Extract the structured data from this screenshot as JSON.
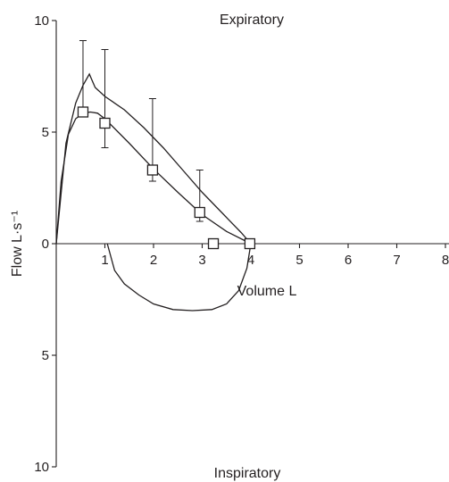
{
  "chart_data": {
    "type": "line",
    "xlabel": "Volume L",
    "ylabel": "Flow L·s⁻¹",
    "xlim": [
      0,
      8
    ],
    "ylim": [
      -10,
      10
    ],
    "x_ticks": [
      1,
      2,
      3,
      4,
      5,
      6,
      7,
      8
    ],
    "y_ticks": [
      {
        "value": 10,
        "label": "10"
      },
      {
        "value": 5,
        "label": "5"
      },
      {
        "value": 0,
        "label": "0"
      },
      {
        "value": -5,
        "label": "5"
      },
      {
        "value": -10,
        "label": "10"
      }
    ],
    "annotations": {
      "top": "Expiratory",
      "bottom": "Inspiratory"
    },
    "series": [
      {
        "x": [
          0,
          0.2,
          0.4,
          0.55,
          0.68,
          0.8,
          1.0,
          1.4,
          1.8,
          2.2,
          2.6,
          3.0,
          3.4,
          3.8,
          4.0
        ],
        "y": [
          0,
          4.5,
          6.3,
          7.1,
          7.6,
          7.0,
          6.6,
          6.0,
          5.2,
          4.3,
          3.3,
          2.3,
          1.4,
          0.5,
          0
        ]
      },
      {
        "x": [
          0,
          0.1,
          0.25,
          0.4,
          0.55,
          0.7,
          0.85,
          1.0,
          1.5,
          2.0,
          2.5,
          3.0,
          3.5,
          4.0
        ],
        "y": [
          0,
          2.8,
          4.9,
          5.6,
          5.85,
          5.9,
          5.85,
          5.6,
          4.5,
          3.35,
          2.3,
          1.3,
          0.55,
          0
        ]
      },
      {
        "x": [
          1.05,
          1.2,
          1.4,
          1.7,
          2.0,
          2.4,
          2.8,
          3.2,
          3.5,
          3.75,
          3.92,
          4.0
        ],
        "y": [
          0,
          -1.2,
          -1.8,
          -2.3,
          -2.7,
          -2.95,
          -3.0,
          -2.95,
          -2.7,
          -2.1,
          -1.1,
          0
        ]
      }
    ],
    "markers": [
      {
        "x": 0.55,
        "y": 5.9,
        "err_hi": 9.1,
        "err_lo": 5.9
      },
      {
        "x": 1.0,
        "y": 5.4,
        "err_hi": 8.7,
        "err_lo": 4.3
      },
      {
        "x": 1.98,
        "y": 3.3,
        "err_hi": 6.5,
        "err_lo": 2.8
      },
      {
        "x": 2.95,
        "y": 1.4,
        "err_hi": 3.3,
        "err_lo": 1.0
      },
      {
        "x": 3.23,
        "y": 0
      },
      {
        "x": 3.98,
        "y": 0
      }
    ]
  }
}
